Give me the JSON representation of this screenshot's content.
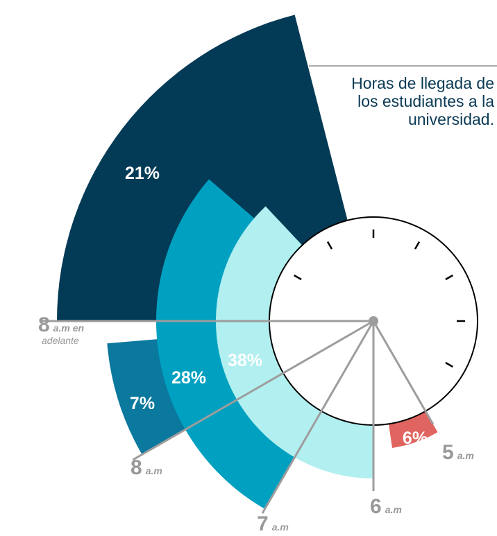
{
  "chart_data": {
    "type": "polar_clock",
    "title": [
      "Horas de llegada de",
      "los estudiantes a la",
      "universidad."
    ],
    "categories": [
      "5",
      "6",
      "7",
      "8",
      "8"
    ],
    "category_suffixes": [
      [
        "a.m"
      ],
      [
        "a.m"
      ],
      [
        "a.m"
      ],
      [
        "a.m"
      ],
      [
        "a.m en",
        "adelante"
      ]
    ],
    "values": [
      6,
      38,
      28,
      7,
      21
    ],
    "value_labels": [
      "6%",
      "38%",
      "28%",
      "7%",
      "21%"
    ],
    "colors": [
      "#e0645f",
      "#b2eff0",
      "#00a0c0",
      "#0b789e",
      "#033a55"
    ]
  }
}
